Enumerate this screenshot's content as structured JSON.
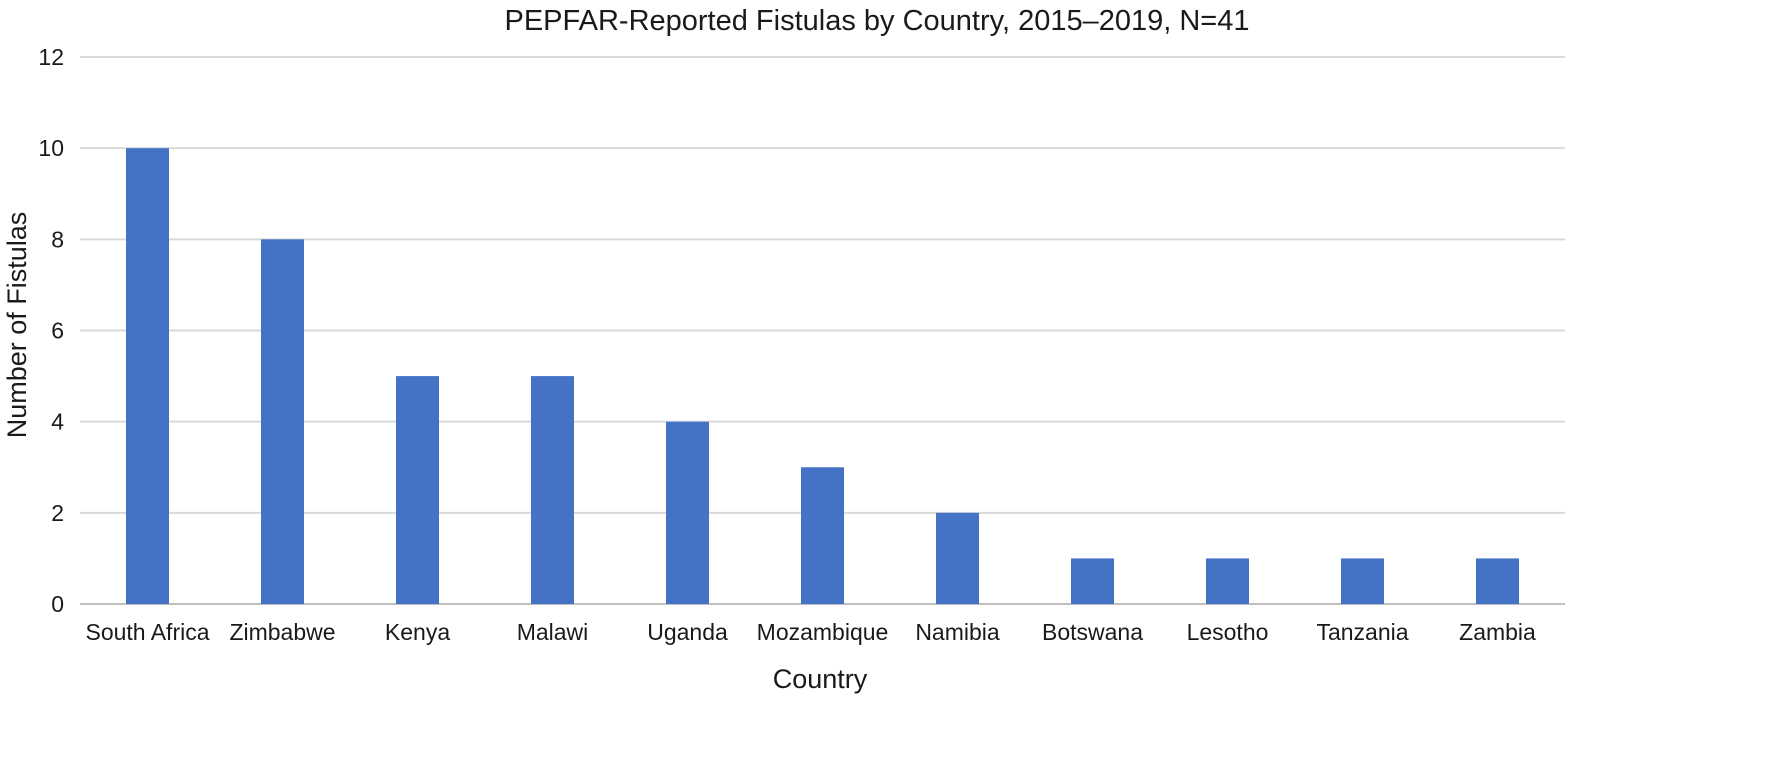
{
  "chart_data": {
    "type": "bar",
    "title": "PEPFAR-Reported Fistulas by Country, 2015–2019, N=41",
    "xlabel": "Country",
    "ylabel": "Number of Fistulas",
    "categories": [
      "South Africa",
      "Zimbabwe",
      "Kenya",
      "Malawi",
      "Uganda",
      "Mozambique",
      "Namibia",
      "Botswana",
      "Lesotho",
      "Tanzania",
      "Zambia"
    ],
    "values": [
      10,
      8,
      5,
      5,
      4,
      3,
      2,
      1,
      1,
      1,
      1
    ],
    "ylim": [
      0,
      12
    ],
    "yticks": [
      "0",
      "2",
      "4",
      "6",
      "8",
      "10",
      "12"
    ],
    "grid": true,
    "legend": "none",
    "colors": {
      "bar": "#4472C4",
      "grid": "#d9d9d9",
      "axis": "#bfbfbf"
    }
  }
}
